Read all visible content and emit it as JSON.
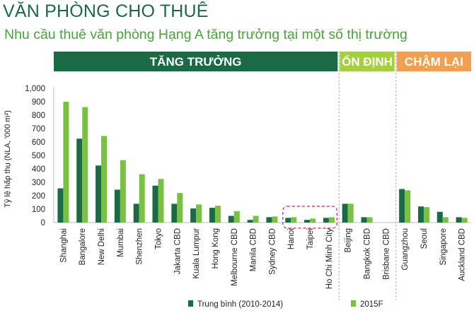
{
  "header": {
    "title": "VĂN PHÒNG CHO THUÊ",
    "subtitle": "Nhu cầu thuê văn phòng Hạng A tăng trưởng tại một số thị trường"
  },
  "colors": {
    "dark_green": "#1a6b45",
    "light_green": "#7ac143",
    "band_growth": "#1a6b45",
    "band_stable": "#a6cf3e",
    "band_slow": "#f0a050",
    "highlight_box": "#c2188b"
  },
  "chart_data": {
    "type": "bar",
    "ylabel": "Tỷ lệ hấp thụ (NLA, '000 m²)",
    "ylim": [
      0,
      1000
    ],
    "yticks": [
      "0",
      "100",
      "200",
      "300",
      "400",
      "500",
      "600",
      "700",
      "800",
      "900",
      "1,000"
    ],
    "grid": false,
    "legend_position": "bottom",
    "bands": [
      {
        "label": "TĂNG TRƯỞNG",
        "from": 0,
        "to": 14
      },
      {
        "label": "ỔN ĐỊNH",
        "from": 15,
        "to": 17
      },
      {
        "label": "CHẬM LẠI",
        "from": 18,
        "to": 21
      }
    ],
    "highlight_categories": [
      "Hanoi",
      "Taipei",
      "Ho Chi Minh City"
    ],
    "categories": [
      "Shanghai",
      "Bangalore",
      "New Delhi",
      "Mumbai",
      "Shenzhen",
      "Tokyo",
      "Jakarta CBD",
      "Kuala Lumpur",
      "Hong Kong",
      "Melbourne CBD",
      "Manila CBD",
      "Sydney CBD",
      "Hanoi",
      "Taipei",
      "Ho Chi Minh City",
      "Beijing",
      "Bangkok CBD",
      "Brisbane CBD",
      "Guangzhou",
      "Seoul",
      "Singapore",
      "Auckland CBD"
    ],
    "series": [
      {
        "name": "Trung bình (2010-2014)",
        "values": [
          255,
          625,
          425,
          245,
          140,
          275,
          140,
          105,
          110,
          50,
          20,
          40,
          35,
          20,
          35,
          140,
          40,
          0,
          250,
          120,
          80,
          40
        ]
      },
      {
        "name": "2015F",
        "values": [
          900,
          860,
          645,
          465,
          360,
          325,
          220,
          135,
          125,
          85,
          50,
          45,
          40,
          30,
          40,
          140,
          40,
          0,
          240,
          115,
          40,
          35
        ]
      }
    ]
  }
}
